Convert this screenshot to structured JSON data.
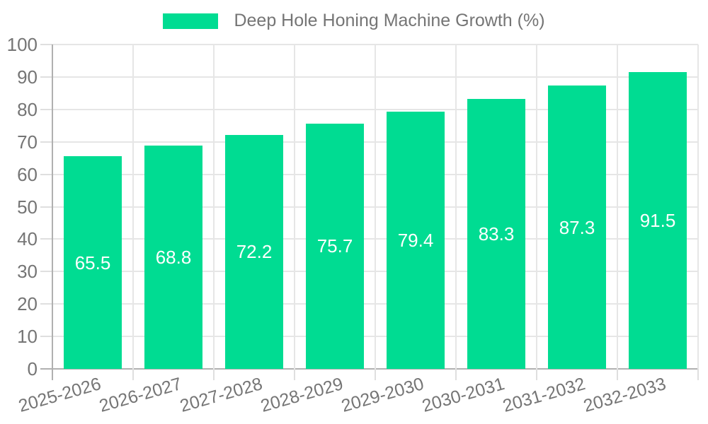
{
  "chart_data": {
    "type": "bar",
    "legend": "Deep Hole Honing Machine Growth (%)",
    "categories": [
      "2025-2026",
      "2026-2027",
      "2027-2028",
      "2028-2029",
      "2029-2030",
      "2030-2031",
      "2031-2032",
      "2032-2033"
    ],
    "values": [
      65.5,
      68.8,
      72.2,
      75.7,
      79.4,
      83.3,
      87.3,
      91.5
    ],
    "value_labels": [
      "65.5",
      "68.8",
      "72.2",
      "75.7",
      "79.4",
      "83.3",
      "87.3",
      "91.5"
    ],
    "ylim": [
      0,
      100
    ],
    "ytick_step": 10,
    "ytick_labels": [
      "0",
      "10",
      "20",
      "30",
      "40",
      "50",
      "60",
      "70",
      "80",
      "90",
      "100"
    ],
    "grid": true,
    "legend_position": "top-center",
    "x_label_rotation_deg": -16,
    "colors": {
      "bar": "#00DC92",
      "grid": "#E6E6E6",
      "axis": "#B0B0B0",
      "tick": "#DFDFDF",
      "text": "#757575",
      "value_label": "#FFFFFF"
    }
  }
}
